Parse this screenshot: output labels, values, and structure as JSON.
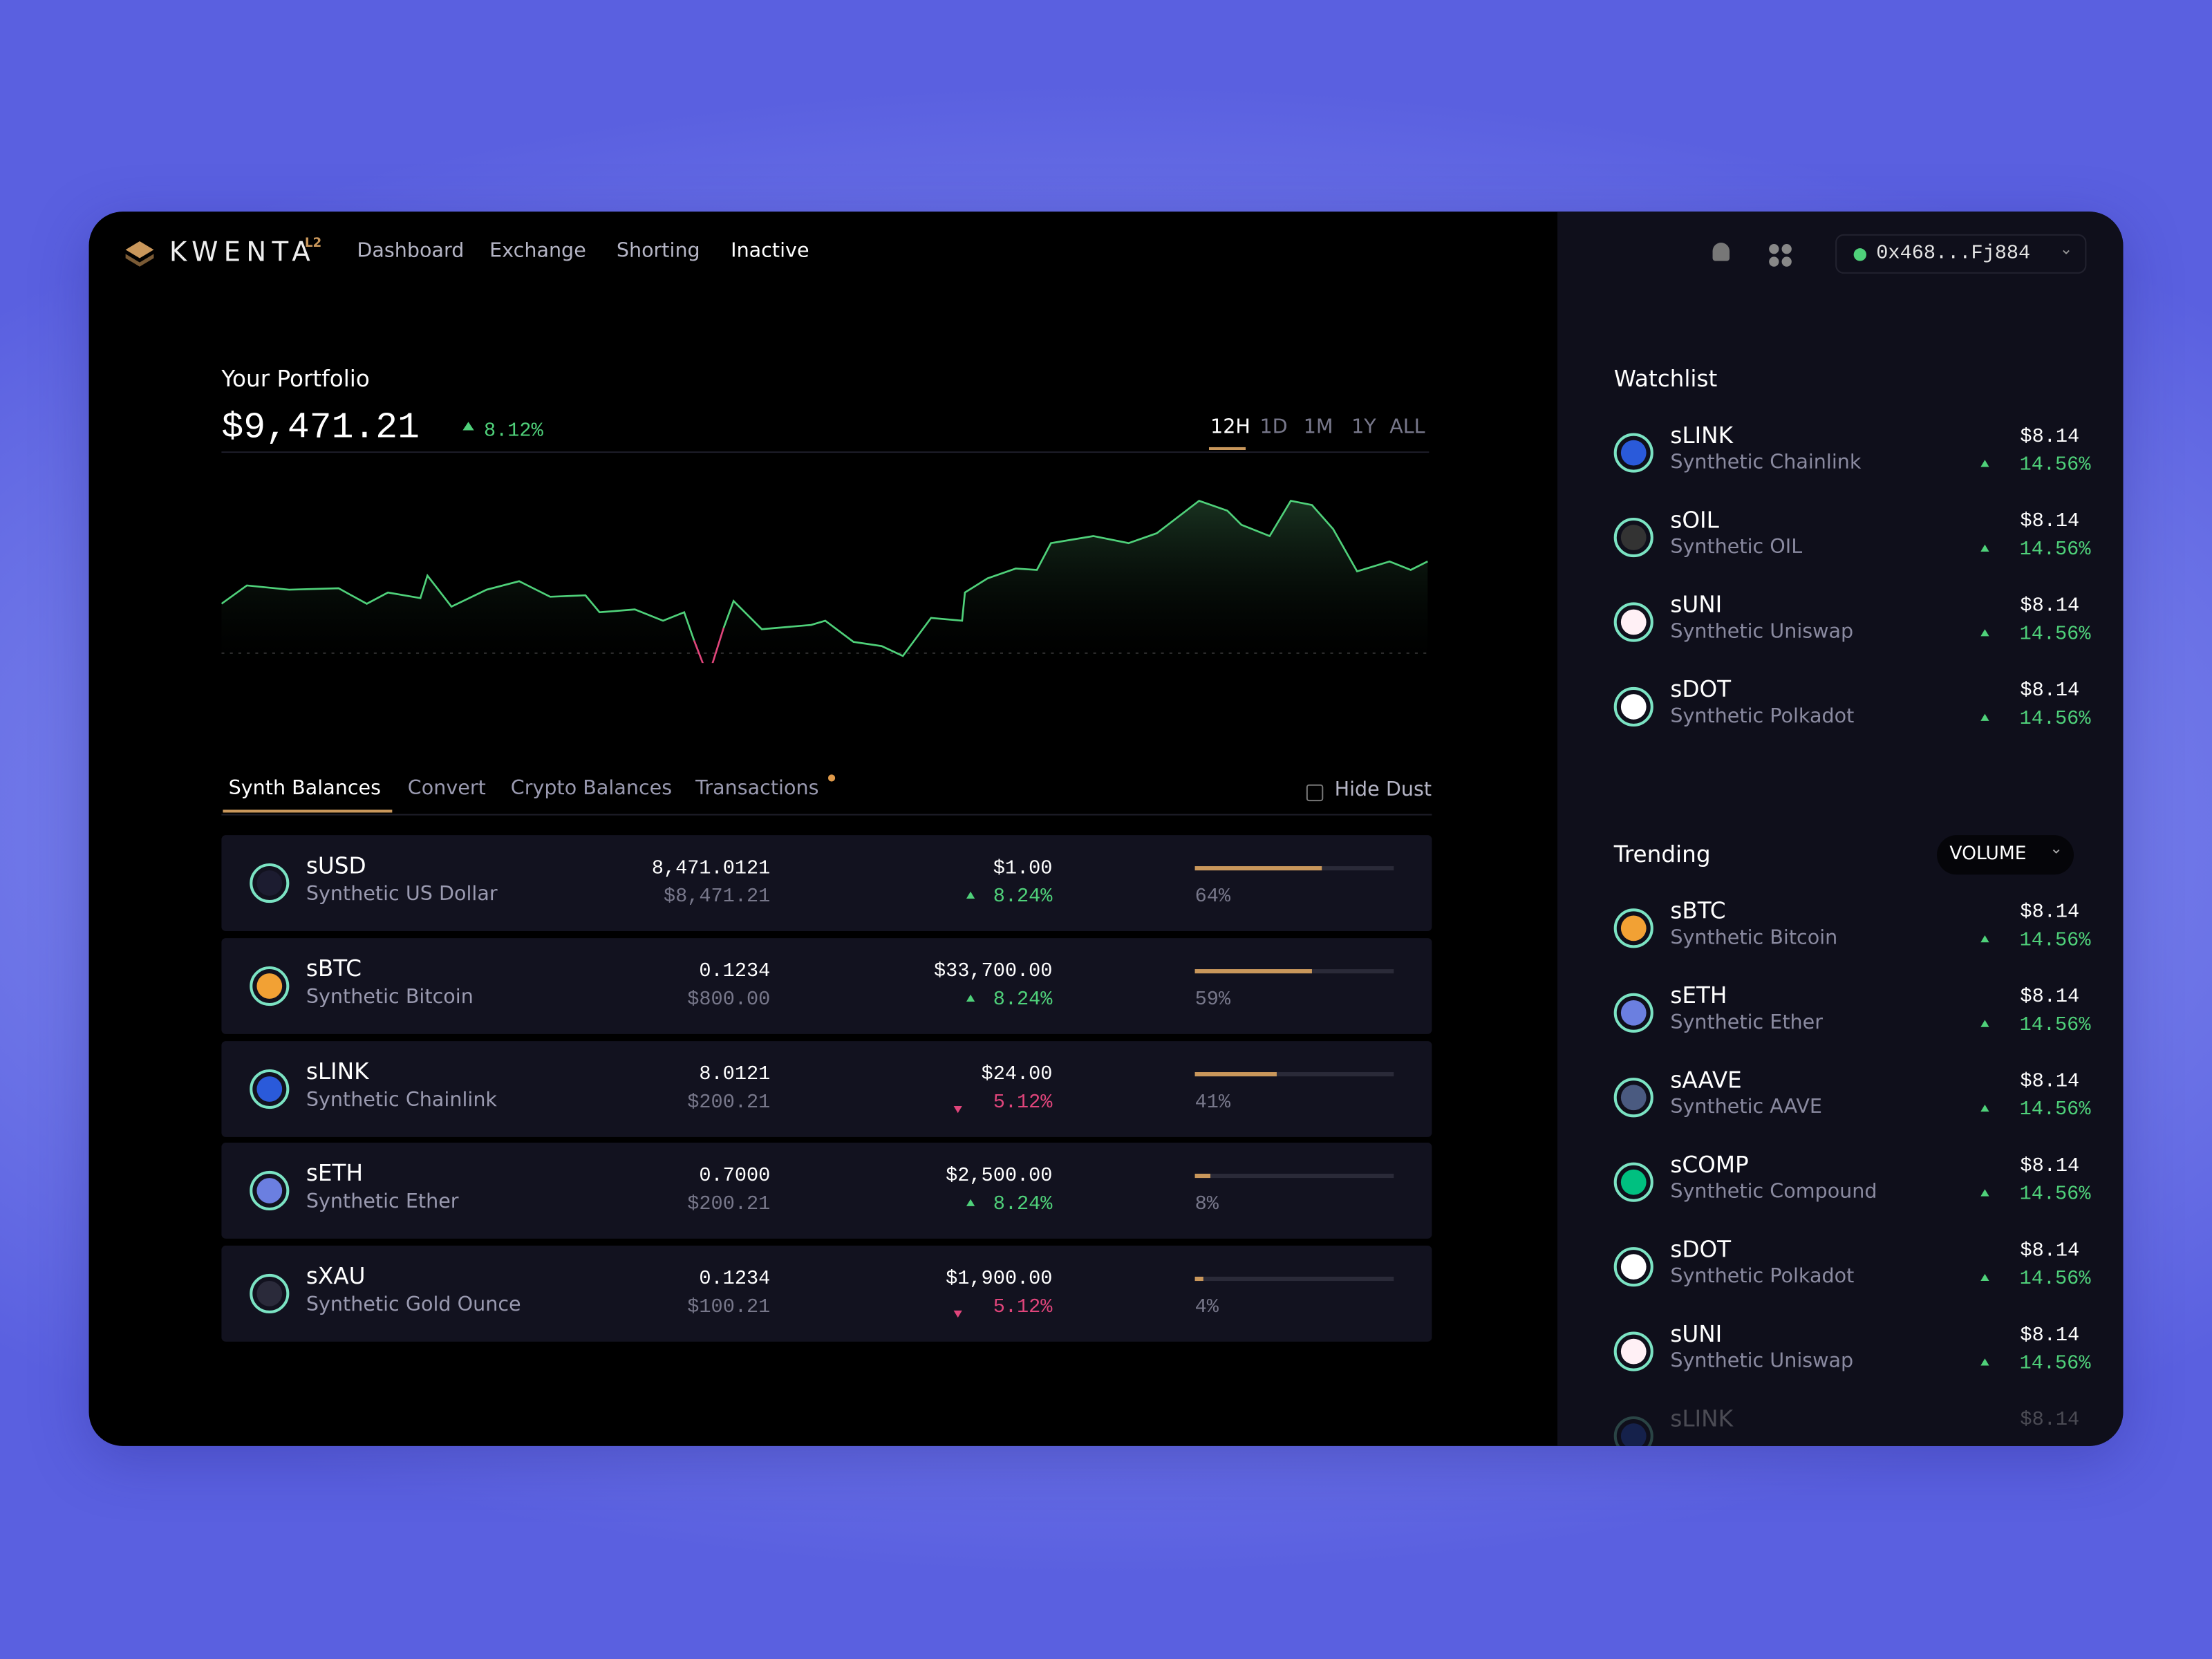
{
  "header": {
    "logo": "KWENTA",
    "logo_badge": "L2",
    "nav": [
      "Dashboard",
      "Exchange",
      "Shorting",
      "Inactive"
    ],
    "wallet": "0x468...Fj884"
  },
  "portfolio": {
    "title": "Your Portfolio",
    "value": "$9,471.21",
    "change": "8.12%",
    "ranges": [
      "12H",
      "1D",
      "1M",
      "1Y",
      "ALL"
    ]
  },
  "tabs": [
    "Synth Balances",
    "Convert",
    "Crypto Balances",
    "Transactions"
  ],
  "hide_dust": "Hide Dust",
  "balances": [
    {
      "symbol": "sUSD",
      "name": "Synthetic US Dollar",
      "amount": "8,471.0121",
      "amount_usd": "$8,471.21",
      "price": "$1.00",
      "change": "8.24%",
      "direction": "up",
      "share": {
        "value": 64,
        "label": "64%"
      }
    },
    {
      "symbol": "sBTC",
      "name": "Synthetic Bitcoin",
      "amount": "0.1234",
      "amount_usd": "$800.00",
      "price": "$33,700.00",
      "change": "8.24%",
      "direction": "up",
      "share": {
        "value": 59,
        "label": "59%"
      }
    },
    {
      "symbol": "sLINK",
      "name": "Synthetic Chainlink",
      "amount": "8.0121",
      "amount_usd": "$200.21",
      "price": "$24.00",
      "change": "5.12%",
      "direction": "down",
      "share": {
        "value": 41,
        "label": "41%"
      }
    },
    {
      "symbol": "sETH",
      "name": "Synthetic Ether",
      "amount": "0.7000",
      "amount_usd": "$200.21",
      "price": "$2,500.00",
      "change": "8.24%",
      "direction": "up",
      "share": {
        "value": 8,
        "label": "8%"
      }
    },
    {
      "symbol": "sXAU",
      "name": "Synthetic Gold Ounce",
      "amount": "0.1234",
      "amount_usd": "$100.21",
      "price": "$1,900.00",
      "change": "5.12%",
      "direction": "down",
      "share": {
        "value": 4,
        "label": "4%"
      }
    }
  ],
  "watchlist": {
    "title": "Watchlist",
    "items": [
      {
        "symbol": "sLINK",
        "name": "Synthetic Chainlink",
        "price": "$8.14",
        "change": "14.56%"
      },
      {
        "symbol": "sOIL",
        "name": "Synthetic OIL",
        "price": "$8.14",
        "change": "14.56%"
      },
      {
        "symbol": "sUNI",
        "name": "Synthetic Uniswap",
        "price": "$8.14",
        "change": "14.56%"
      },
      {
        "symbol": "sDOT",
        "name": "Synthetic Polkadot",
        "price": "$8.14",
        "change": "14.56%"
      }
    ]
  },
  "trending": {
    "title": "Trending",
    "sort": "VOLUME",
    "items": [
      {
        "symbol": "sBTC",
        "name": "Synthetic  Bitcoin",
        "price": "$8.14",
        "change": "14.56%"
      },
      {
        "symbol": "sETH",
        "name": "Synthetic Ether",
        "price": "$8.14",
        "change": "14.56%"
      },
      {
        "symbol": "sAAVE",
        "name": "Synthetic AAVE",
        "price": "$8.14",
        "change": "14.56%"
      },
      {
        "symbol": "sCOMP",
        "name": "Synthetic Compound",
        "price": "$8.14",
        "change": "14.56%"
      },
      {
        "symbol": "sDOT",
        "name": "Synthetic Polkadot",
        "price": "$8.14",
        "change": "14.56%"
      },
      {
        "symbol": "sUNI",
        "name": "Synthetic Uniswap",
        "price": "$8.14",
        "change": "14.56%"
      },
      {
        "symbol": "sLINK",
        "price": "$8.14"
      }
    ]
  }
}
